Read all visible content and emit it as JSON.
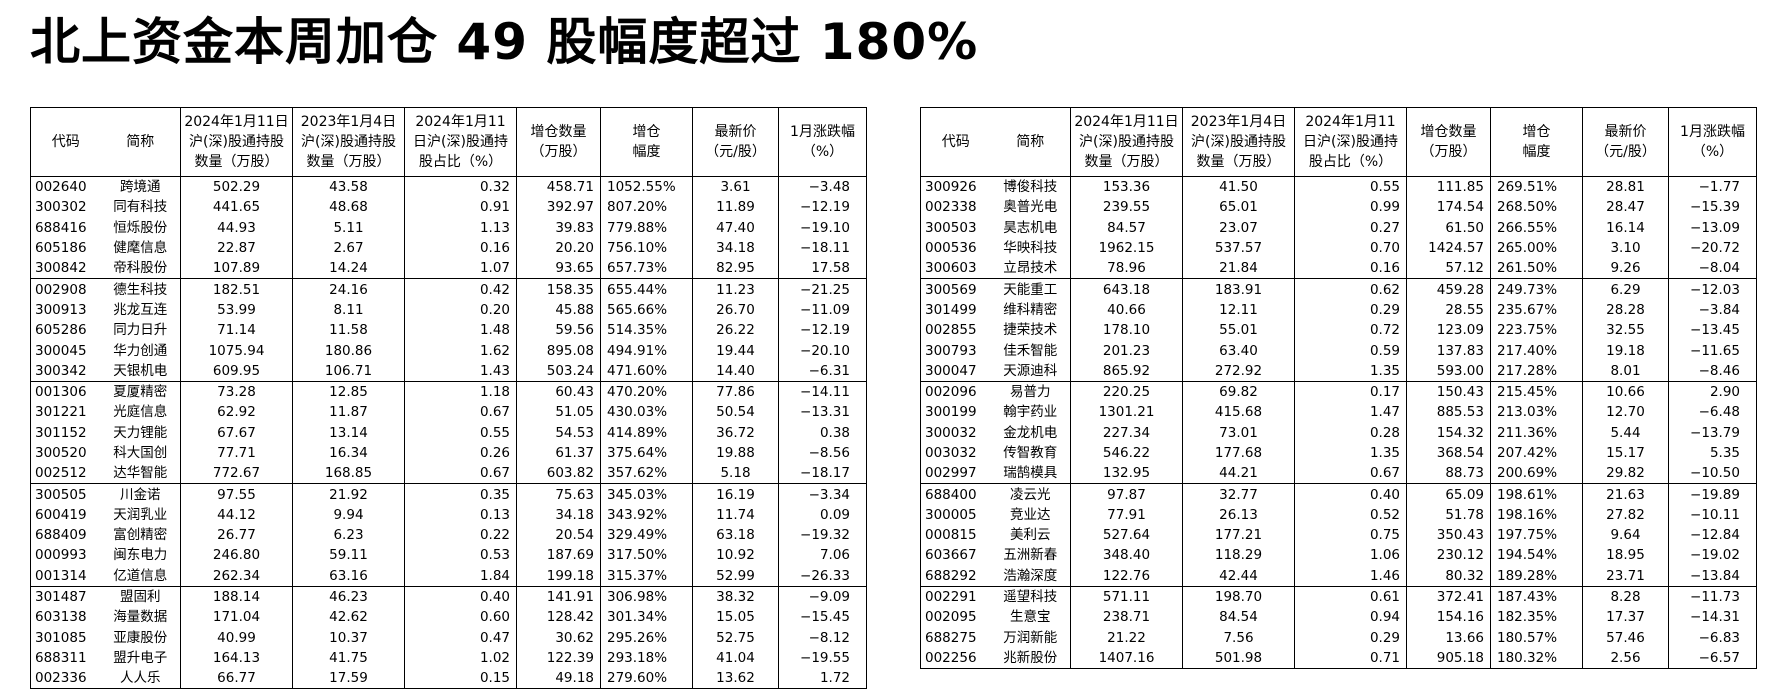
{
  "title": "北上资金本周加仓 49 股幅度超过 180%",
  "headers": [
    "代码",
    "简称",
    "2024年1月11日\n沪(深)股通持股\n数量（万股）",
    "2023年1月4日\n沪(深)股通持股\n数量（万股）",
    "2024年1月11\n日沪(深)股通持\n股占比（%）",
    "增仓数量\n（万股）",
    "增仓\n幅度",
    "最新价\n（元/股）",
    "1月涨跌幅\n（%）"
  ],
  "left_rows": [
    [
      "002640",
      "跨境通",
      "502.29",
      "43.58",
      "0.32",
      "458.71",
      "1052.55%",
      "3.61",
      "-3.48"
    ],
    [
      "300302",
      "同有科技",
      "441.65",
      "48.68",
      "0.91",
      "392.97",
      "807.20%",
      "11.89",
      "-12.19"
    ],
    [
      "688416",
      "恒烁股份",
      "44.93",
      "5.11",
      "1.13",
      "39.83",
      "779.88%",
      "47.40",
      "-19.10"
    ],
    [
      "605186",
      "健麾信息",
      "22.87",
      "2.67",
      "0.16",
      "20.20",
      "756.10%",
      "34.18",
      "-18.11"
    ],
    [
      "300842",
      "帝科股份",
      "107.89",
      "14.24",
      "1.07",
      "93.65",
      "657.73%",
      "82.95",
      "17.58"
    ],
    [
      "002908",
      "德生科技",
      "182.51",
      "24.16",
      "0.42",
      "158.35",
      "655.44%",
      "11.23",
      "-21.25"
    ],
    [
      "300913",
      "兆龙互连",
      "53.99",
      "8.11",
      "0.20",
      "45.88",
      "565.66%",
      "26.70",
      "-11.09"
    ],
    [
      "605286",
      "同力日升",
      "71.14",
      "11.58",
      "1.48",
      "59.56",
      "514.35%",
      "26.22",
      "-12.19"
    ],
    [
      "300045",
      "华力创通",
      "1075.94",
      "180.86",
      "1.62",
      "895.08",
      "494.91%",
      "19.44",
      "-20.10"
    ],
    [
      "300342",
      "天银机电",
      "609.95",
      "106.71",
      "1.43",
      "503.24",
      "471.60%",
      "14.40",
      "-6.31"
    ],
    [
      "001306",
      "夏厦精密",
      "73.28",
      "12.85",
      "1.18",
      "60.43",
      "470.20%",
      "77.86",
      "-14.11"
    ],
    [
      "301221",
      "光庭信息",
      "62.92",
      "11.87",
      "0.67",
      "51.05",
      "430.03%",
      "50.54",
      "-13.31"
    ],
    [
      "301152",
      "天力锂能",
      "67.67",
      "13.14",
      "0.55",
      "54.53",
      "414.89%",
      "36.72",
      "0.38"
    ],
    [
      "300520",
      "科大国创",
      "77.71",
      "16.34",
      "0.26",
      "61.37",
      "375.64%",
      "19.88",
      "-8.56"
    ],
    [
      "002512",
      "达华智能",
      "772.67",
      "168.85",
      "0.67",
      "603.82",
      "357.62%",
      "5.18",
      "-18.17"
    ],
    [
      "300505",
      "川金诺",
      "97.55",
      "21.92",
      "0.35",
      "75.63",
      "345.03%",
      "16.19",
      "-3.34"
    ],
    [
      "600419",
      "天润乳业",
      "44.12",
      "9.94",
      "0.13",
      "34.18",
      "343.92%",
      "11.74",
      "0.09"
    ],
    [
      "688409",
      "富创精密",
      "26.77",
      "6.23",
      "0.22",
      "20.54",
      "329.49%",
      "63.18",
      "-19.32"
    ],
    [
      "000993",
      "闽东电力",
      "246.80",
      "59.11",
      "0.53",
      "187.69",
      "317.50%",
      "10.92",
      "7.06"
    ],
    [
      "001314",
      "亿道信息",
      "262.34",
      "63.16",
      "1.84",
      "199.18",
      "315.37%",
      "52.99",
      "-26.33"
    ],
    [
      "301487",
      "盟固利",
      "188.14",
      "46.23",
      "0.40",
      "141.91",
      "306.98%",
      "38.32",
      "-9.09"
    ],
    [
      "603138",
      "海量数据",
      "171.04",
      "42.62",
      "0.60",
      "128.42",
      "301.34%",
      "15.05",
      "-15.45"
    ],
    [
      "301085",
      "亚康股份",
      "40.99",
      "10.37",
      "0.47",
      "30.62",
      "295.26%",
      "52.75",
      "-8.12"
    ],
    [
      "688311",
      "盟升电子",
      "164.13",
      "41.75",
      "1.02",
      "122.39",
      "293.18%",
      "41.04",
      "-19.55"
    ],
    [
      "002336",
      "人人乐",
      "66.77",
      "17.59",
      "0.15",
      "49.18",
      "279.60%",
      "13.62",
      "1.72"
    ]
  ],
  "right_rows": [
    [
      "300926",
      "博俊科技",
      "153.36",
      "41.50",
      "0.55",
      "111.85",
      "269.51%",
      "28.81",
      "-1.77"
    ],
    [
      "002338",
      "奥普光电",
      "239.55",
      "65.01",
      "0.99",
      "174.54",
      "268.50%",
      "28.47",
      "-15.39"
    ],
    [
      "300503",
      "昊志机电",
      "84.57",
      "23.07",
      "0.27",
      "61.50",
      "266.55%",
      "16.14",
      "-13.09"
    ],
    [
      "000536",
      "华映科技",
      "1962.15",
      "537.57",
      "0.70",
      "1424.57",
      "265.00%",
      "3.10",
      "-20.72"
    ],
    [
      "300603",
      "立昂技术",
      "78.96",
      "21.84",
      "0.16",
      "57.12",
      "261.50%",
      "9.26",
      "-8.04"
    ],
    [
      "300569",
      "天能重工",
      "643.18",
      "183.91",
      "0.62",
      "459.28",
      "249.73%",
      "6.29",
      "-12.03"
    ],
    [
      "301499",
      "维科精密",
      "40.66",
      "12.11",
      "0.29",
      "28.55",
      "235.67%",
      "28.28",
      "-3.84"
    ],
    [
      "002855",
      "捷荣技术",
      "178.10",
      "55.01",
      "0.72",
      "123.09",
      "223.75%",
      "32.55",
      "-13.45"
    ],
    [
      "300793",
      "佳禾智能",
      "201.23",
      "63.40",
      "0.59",
      "137.83",
      "217.40%",
      "19.18",
      "-11.65"
    ],
    [
      "300047",
      "天源迪科",
      "865.92",
      "272.92",
      "1.35",
      "593.00",
      "217.28%",
      "8.01",
      "-8.46"
    ],
    [
      "002096",
      "易普力",
      "220.25",
      "69.82",
      "0.17",
      "150.43",
      "215.45%",
      "10.66",
      "2.90"
    ],
    [
      "300199",
      "翰宇药业",
      "1301.21",
      "415.68",
      "1.47",
      "885.53",
      "213.03%",
      "12.70",
      "-6.48"
    ],
    [
      "300032",
      "金龙机电",
      "227.34",
      "73.01",
      "0.28",
      "154.32",
      "211.36%",
      "5.44",
      "-13.79"
    ],
    [
      "003032",
      "传智教育",
      "546.22",
      "177.68",
      "1.35",
      "368.54",
      "207.42%",
      "15.17",
      "5.35"
    ],
    [
      "002997",
      "瑞鹄模具",
      "132.95",
      "44.21",
      "0.67",
      "88.73",
      "200.69%",
      "29.82",
      "-10.50"
    ],
    [
      "688400",
      "凌云光",
      "97.87",
      "32.77",
      "0.40",
      "65.09",
      "198.61%",
      "21.63",
      "-19.89"
    ],
    [
      "300005",
      "竞业达",
      "77.91",
      "26.13",
      "0.52",
      "51.78",
      "198.16%",
      "27.82",
      "-10.11"
    ],
    [
      "000815",
      "美利云",
      "527.64",
      "177.21",
      "0.75",
      "350.43",
      "197.75%",
      "9.64",
      "-12.84"
    ],
    [
      "603667",
      "五洲新春",
      "348.40",
      "118.29",
      "1.06",
      "230.12",
      "194.54%",
      "18.95",
      "-19.02"
    ],
    [
      "688292",
      "浩瀚深度",
      "122.76",
      "42.44",
      "1.46",
      "80.32",
      "189.28%",
      "23.71",
      "-13.84"
    ],
    [
      "002291",
      "遥望科技",
      "571.11",
      "198.70",
      "0.61",
      "372.41",
      "187.43%",
      "8.28",
      "-11.73"
    ],
    [
      "002095",
      "生意宝",
      "238.71",
      "84.54",
      "0.94",
      "154.16",
      "182.35%",
      "17.37",
      "-14.31"
    ],
    [
      "688275",
      "万润新能",
      "21.22",
      "7.56",
      "0.29",
      "13.66",
      "180.57%",
      "57.46",
      "-6.83"
    ],
    [
      "002256",
      "兆新股份",
      "1407.16",
      "501.98",
      "0.71",
      "905.18",
      "180.32%",
      "2.56",
      "-6.57"
    ]
  ]
}
